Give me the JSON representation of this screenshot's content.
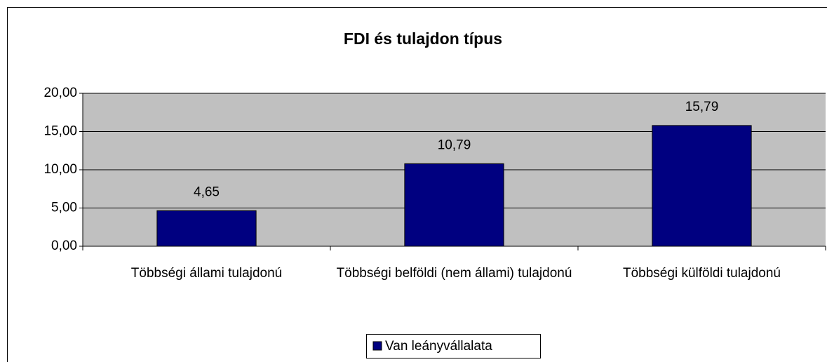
{
  "chart_data": {
    "type": "bar",
    "title": "FDI és tulajdon típus",
    "categories": [
      "Többségi állami tulajdonú",
      "Többségi belföldi (nem állami) tulajdonú",
      "Többségi külföldi tulajdonú"
    ],
    "series": [
      {
        "name": "Van leányvállalata",
        "color": "#000080",
        "values": [
          4.65,
          10.79,
          15.79
        ],
        "value_labels": [
          "4,65",
          "10,79",
          "15,79"
        ]
      }
    ],
    "ylim": [
      0,
      20
    ],
    "yticks": [
      {
        "value": 0,
        "label": "0,00"
      },
      {
        "value": 5,
        "label": "5,00"
      },
      {
        "value": 10,
        "label": "10,00"
      },
      {
        "value": 15,
        "label": "15,00"
      },
      {
        "value": 20,
        "label": "20,00"
      }
    ],
    "grid": true,
    "legend": "bottom"
  }
}
